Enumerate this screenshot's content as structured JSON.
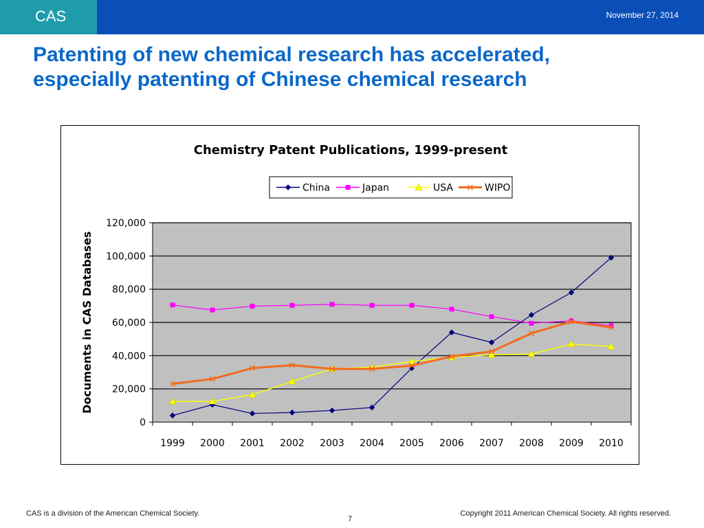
{
  "header": {
    "logo_text": "CAS",
    "date": "November 27, 2014"
  },
  "title": {
    "line1": "Patenting of new chemical research has accelerated,",
    "line2": "especially patenting of Chinese chemical research"
  },
  "footer": {
    "left": "CAS is a division of the American Chemical Society.",
    "page_number": "7",
    "right": "Copyright 2011 American Chemical Society. All rights reserved."
  },
  "colors": {
    "top_bar": "#0a4fb7",
    "logo_block": "#1e9cab",
    "title": "#0a68c8",
    "plot_background": "#c0c0c0"
  },
  "chart_data": {
    "type": "line",
    "title": "Chemistry Patent Publications, 1999-present",
    "xlabel": "",
    "ylabel": "Documents in CAS Databases",
    "categories": [
      "1999",
      "2000",
      "2001",
      "2002",
      "2003",
      "2004",
      "2005",
      "2006",
      "2007",
      "2008",
      "2009",
      "2010"
    ],
    "ylim": [
      0,
      120000
    ],
    "yticks": [
      0,
      20000,
      40000,
      60000,
      80000,
      100000,
      120000
    ],
    "ytick_labels": [
      "0",
      "20,000",
      "40,000",
      "60,000",
      "80,000",
      "100,000",
      "120,000"
    ],
    "grid": "horizontal",
    "legend_position": "top-right",
    "series": [
      {
        "name": "China",
        "color": "#000080",
        "marker": "diamond",
        "values": [
          4000,
          10500,
          5200,
          5800,
          7000,
          8800,
          32500,
          54000,
          48000,
          64500,
          78000,
          99000
        ]
      },
      {
        "name": "Japan",
        "color": "#ff00ff",
        "marker": "square",
        "values": [
          70500,
          67500,
          69800,
          70300,
          70900,
          70300,
          70300,
          68000,
          63500,
          59500,
          61000,
          58000
        ]
      },
      {
        "name": "USA",
        "color": "#ffff00",
        "marker": "triangle",
        "values": [
          12500,
          12500,
          16500,
          24500,
          32000,
          33000,
          36500,
          39000,
          40500,
          41000,
          47000,
          45500
        ]
      },
      {
        "name": "WIPO",
        "color": "#f26b1d",
        "marker": "x",
        "values": [
          23000,
          26000,
          32500,
          34300,
          32000,
          32000,
          34000,
          39500,
          42500,
          53500,
          60500,
          57000
        ]
      }
    ]
  }
}
